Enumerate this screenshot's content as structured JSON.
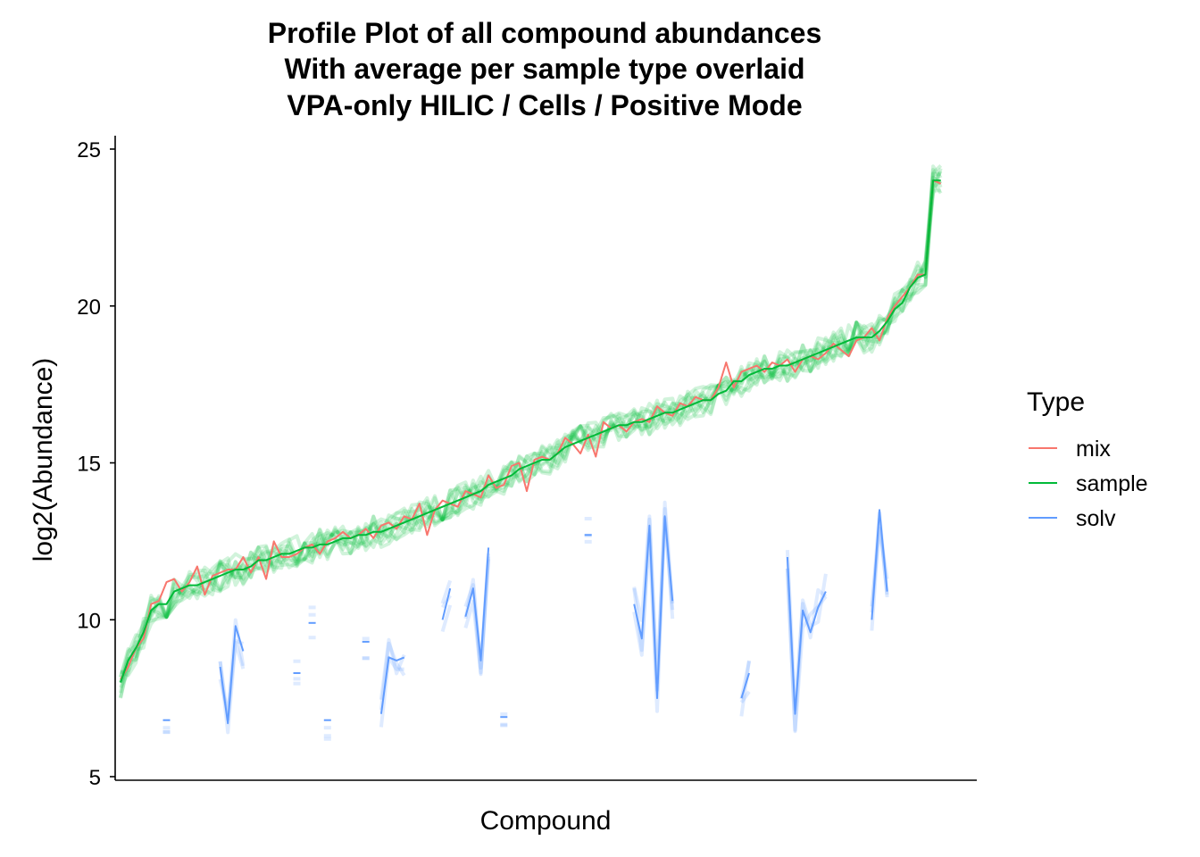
{
  "chart_data": {
    "type": "line",
    "title_lines": [
      "Profile Plot of all compound abundances",
      "With average per sample type overlaid",
      "VPA-only HILIC / Cells / Positive Mode"
    ],
    "xlabel": "Compound",
    "ylabel": "log2(Abundance)",
    "ylim": [
      5,
      25.4
    ],
    "yticks": [
      5,
      10,
      15,
      20,
      25
    ],
    "x_ticks_shown": false,
    "grid": false,
    "legend": {
      "title": "Type",
      "placement": "right",
      "entries": [
        {
          "name": "mix",
          "color": "#F8766D"
        },
        {
          "name": "sample",
          "color": "#00BA38"
        },
        {
          "name": "solv",
          "color": "#619CFF"
        }
      ]
    },
    "n_compounds": 112,
    "series": [
      {
        "name": "sample",
        "role": "average",
        "color": "#00BA38",
        "values": [
          8.0,
          8.7,
          9.1,
          9.6,
          10.3,
          10.5,
          10.5,
          10.9,
          11.0,
          11.1,
          11.1,
          11.2,
          11.3,
          11.4,
          11.5,
          11.6,
          11.6,
          11.7,
          11.9,
          11.9,
          12.0,
          12.1,
          12.1,
          12.2,
          12.3,
          12.3,
          12.4,
          12.4,
          12.5,
          12.6,
          12.6,
          12.7,
          12.7,
          12.8,
          12.8,
          12.9,
          13.0,
          13.1,
          13.2,
          13.3,
          13.4,
          13.5,
          13.6,
          13.7,
          13.8,
          13.9,
          14.0,
          14.1,
          14.3,
          14.4,
          14.5,
          14.6,
          14.8,
          14.9,
          15.0,
          15.1,
          15.1,
          15.3,
          15.5,
          15.6,
          15.7,
          15.8,
          15.9,
          16.0,
          16.1,
          16.2,
          16.2,
          16.3,
          16.3,
          16.4,
          16.5,
          16.6,
          16.6,
          16.7,
          16.8,
          16.9,
          17.0,
          17.0,
          17.2,
          17.3,
          17.6,
          17.6,
          17.8,
          17.9,
          18.0,
          18.0,
          18.1,
          18.1,
          18.2,
          18.3,
          18.4,
          18.5,
          18.6,
          18.7,
          18.8,
          18.9,
          19.0,
          19.0,
          19.0,
          19.2,
          19.5,
          19.9,
          20.1,
          20.6,
          20.9,
          21.0,
          24.0,
          24.0
        ]
      },
      {
        "name": "mix",
        "role": "average",
        "color": "#F8766D",
        "values": [
          8.1,
          8.5,
          9.1,
          9.4,
          10.5,
          10.6,
          11.2,
          11.3,
          10.9,
          11.2,
          11.7,
          10.8,
          11.4,
          11.5,
          11.6,
          11.6,
          12.0,
          11.5,
          12.0,
          11.3,
          12.5,
          12.0,
          12.0,
          12.1,
          12.3,
          12.4,
          12.1,
          12.5,
          12.6,
          12.8,
          12.6,
          12.7,
          12.9,
          12.6,
          13.0,
          13.1,
          12.9,
          13.3,
          13.2,
          13.7,
          12.7,
          13.5,
          13.8,
          13.7,
          13.6,
          14.1,
          14.0,
          13.9,
          14.6,
          14.2,
          14.3,
          14.9,
          15.0,
          14.1,
          15.1,
          15.2,
          15.1,
          15.3,
          15.8,
          15.6,
          15.3,
          15.9,
          15.2,
          16.3,
          16.1,
          16.2,
          16.0,
          16.3,
          16.4,
          16.3,
          16.8,
          16.6,
          16.5,
          16.9,
          16.8,
          17.1,
          17.0,
          17.0,
          17.4,
          18.2,
          17.4,
          17.9,
          18.0,
          18.1,
          17.9,
          18.2,
          18.1,
          18.3,
          17.9,
          18.3,
          18.4,
          18.3,
          18.5,
          18.8,
          18.6,
          18.4,
          18.9,
          19.0,
          19.3,
          18.9,
          19.6,
          20.0,
          20.3,
          20.6,
          21.0,
          21.0,
          24.0,
          23.9
        ]
      },
      {
        "name": "solv",
        "role": "average",
        "color": "#619CFF",
        "values": [
          null,
          null,
          null,
          null,
          null,
          null,
          6.8,
          null,
          null,
          null,
          null,
          null,
          null,
          8.5,
          6.7,
          9.8,
          9.0,
          null,
          null,
          null,
          null,
          null,
          null,
          8.3,
          null,
          9.9,
          null,
          6.8,
          null,
          null,
          null,
          null,
          9.3,
          null,
          7.0,
          8.8,
          8.7,
          8.8,
          null,
          null,
          null,
          null,
          10.0,
          11.0,
          null,
          10.1,
          11.0,
          8.7,
          12.3,
          null,
          6.9,
          null,
          null,
          null,
          null,
          null,
          null,
          null,
          null,
          null,
          null,
          12.7,
          null,
          null,
          null,
          null,
          null,
          10.5,
          9.4,
          13.0,
          7.5,
          13.3,
          10.6,
          null,
          null,
          null,
          null,
          null,
          null,
          null,
          null,
          7.5,
          8.3,
          null,
          null,
          null,
          null,
          12.0,
          7.0,
          10.3,
          9.6,
          10.4,
          10.9,
          null,
          null,
          null,
          null,
          null,
          10.0,
          13.5,
          10.9,
          null,
          null,
          null,
          null,
          null,
          null,
          null,
          null,
          null,
          null,
          null,
          null,
          null
        ]
      }
    ]
  }
}
